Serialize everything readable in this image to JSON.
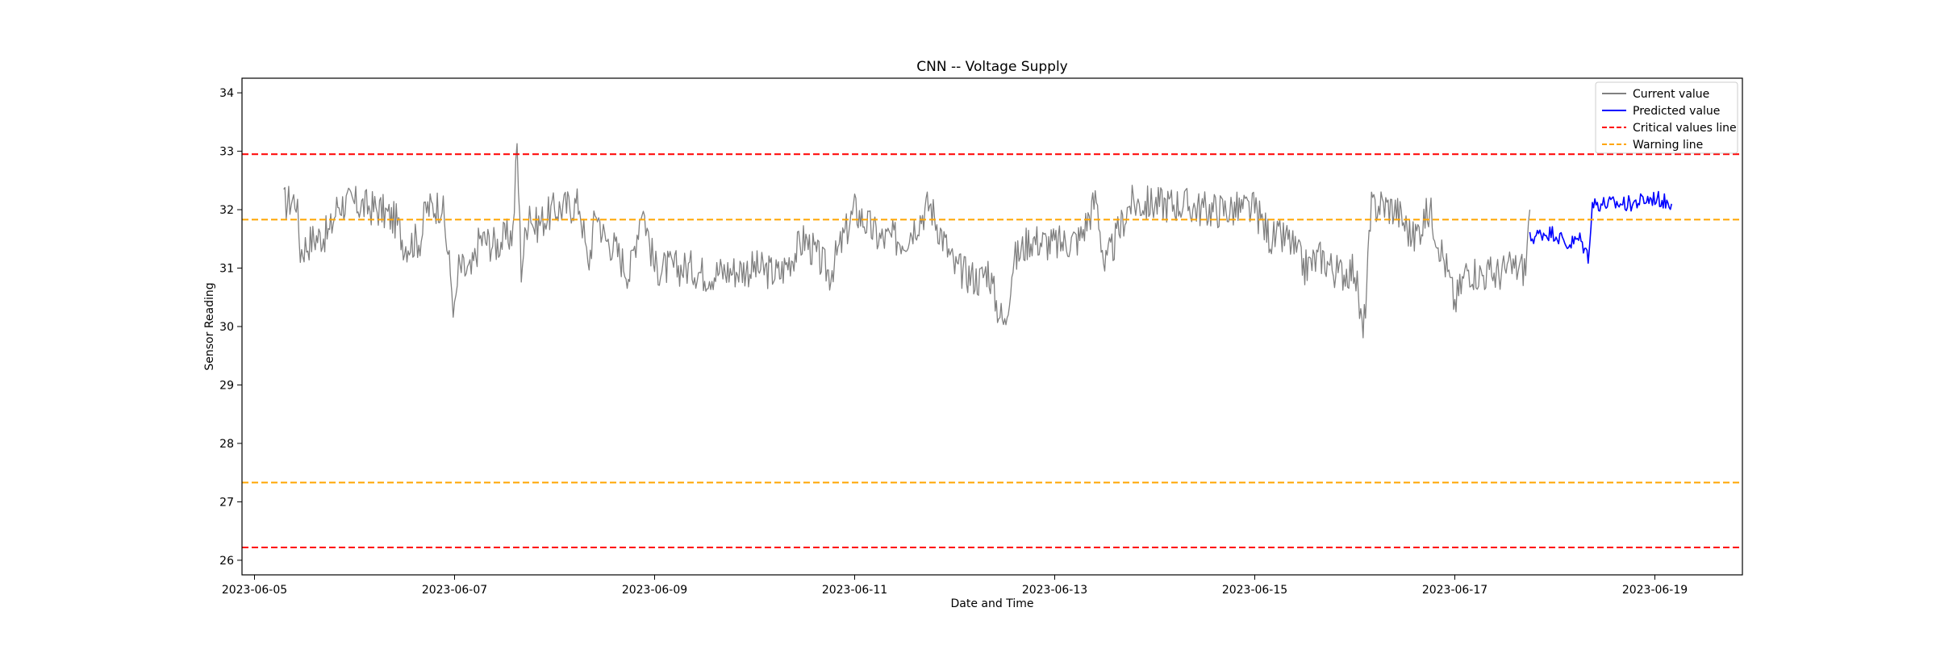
{
  "chart_data": {
    "type": "line",
    "title": "CNN -- Voltage Supply",
    "xlabel": "Date and Time",
    "ylabel": "Sensor Reading",
    "x_range": [
      "2023-06-04T21:00",
      "2023-06-19T21:00"
    ],
    "ylim": [
      25.75,
      34.25
    ],
    "x_ticks": [
      "2023-06-05",
      "2023-06-07",
      "2023-06-09",
      "2023-06-11",
      "2023-06-13",
      "2023-06-15",
      "2023-06-17",
      "2023-06-19"
    ],
    "y_ticks": [
      "26",
      "27",
      "28",
      "29",
      "30",
      "31",
      "32",
      "33",
      "34"
    ],
    "grid": false,
    "legend_position": "top-right",
    "series": [
      {
        "name": "Current value",
        "color": "#808080",
        "style": "solid",
        "x": [
          "2023-06-05T07:00",
          "2023-06-05T10:00",
          "2023-06-05T11:00",
          "2023-06-05T14:00",
          "2023-06-05T18:00",
          "2023-06-05T20:00",
          "2023-06-06T00:00",
          "2023-06-06T06:00",
          "2023-06-06T10:00",
          "2023-06-06T12:00",
          "2023-06-06T16:00",
          "2023-06-06T17:00",
          "2023-06-06T21:00",
          "2023-06-06T23:00",
          "2023-06-07T00:00",
          "2023-06-07T01:00",
          "2023-06-07T04:00",
          "2023-06-07T06:00",
          "2023-06-07T10:00",
          "2023-06-07T14:00",
          "2023-06-07T15:00",
          "2023-06-07T16:00",
          "2023-06-07T18:00",
          "2023-06-07T19:00",
          "2023-06-08T00:00",
          "2023-06-08T06:00",
          "2023-06-08T07:00",
          "2023-06-08T08:00",
          "2023-06-08T10:00",
          "2023-06-08T12:00",
          "2023-06-08T14:00",
          "2023-06-08T18:00",
          "2023-06-08T21:00",
          "2023-06-09T00:00",
          "2023-06-09T06:00",
          "2023-06-09T09:00",
          "2023-06-09T12:00",
          "2023-06-10T00:00",
          "2023-06-10T06:00",
          "2023-06-10T12:00",
          "2023-06-10T18:00",
          "2023-06-11T00:00",
          "2023-06-11T06:00",
          "2023-06-11T12:00",
          "2023-06-11T18:00",
          "2023-06-12T00:00",
          "2023-06-12T06:00",
          "2023-06-12T08:00",
          "2023-06-12T10:00",
          "2023-06-12T12:00",
          "2023-06-12T14:00",
          "2023-06-12T18:00",
          "2023-06-13T00:00",
          "2023-06-13T06:00",
          "2023-06-13T10:00",
          "2023-06-13T12:00",
          "2023-06-13T18:00",
          "2023-06-14T00:00",
          "2023-06-14T06:00",
          "2023-06-14T12:00",
          "2023-06-14T18:00",
          "2023-06-15T00:00",
          "2023-06-15T04:00",
          "2023-06-15T08:00",
          "2023-06-15T12:00",
          "2023-06-15T16:00",
          "2023-06-15T20:00",
          "2023-06-16T00:00",
          "2023-06-16T02:00",
          "2023-06-16T04:00",
          "2023-06-16T06:00",
          "2023-06-16T10:00",
          "2023-06-16T14:00",
          "2023-06-16T18:00",
          "2023-06-16T22:00",
          "2023-06-17T00:00",
          "2023-06-17T03:00",
          "2023-06-17T06:00",
          "2023-06-17T10:00",
          "2023-06-17T14:00",
          "2023-06-17T17:00",
          "2023-06-17T18:00"
        ],
        "values": [
          32.1,
          32.2,
          31.3,
          31.5,
          31.6,
          32.1,
          32.1,
          32.0,
          31.8,
          31.4,
          31.5,
          32.0,
          32.1,
          30.9,
          30.2,
          31.0,
          30.9,
          31.5,
          31.4,
          31.6,
          33.1,
          31.0,
          32.1,
          31.7,
          32.0,
          32.1,
          31.6,
          31.0,
          32.0,
          31.5,
          31.4,
          30.9,
          32.1,
          31.0,
          31.0,
          31.0,
          30.9,
          31.0,
          30.9,
          31.5,
          30.9,
          32.0,
          31.5,
          31.5,
          32.1,
          31.0,
          30.8,
          31.0,
          30.4,
          30.0,
          31.1,
          31.5,
          31.4,
          31.5,
          32.2,
          31.0,
          32.1,
          32.1,
          32.1,
          32.0,
          32.0,
          32.0,
          31.5,
          31.5,
          31.0,
          31.2,
          30.9,
          31.0,
          29.8,
          32.0,
          32.1,
          32.0,
          31.5,
          32.0,
          31.0,
          30.4,
          31.0,
          30.9,
          30.9,
          31.0,
          31.0,
          32.0
        ]
      },
      {
        "name": "Predicted value",
        "color": "#0000ff",
        "style": "solid",
        "x": [
          "2023-06-17T18:00",
          "2023-06-17T21:00",
          "2023-06-18T00:00",
          "2023-06-18T03:00",
          "2023-06-18T06:00",
          "2023-06-18T08:00",
          "2023-06-18T09:00",
          "2023-06-18T12:00",
          "2023-06-18T18:00",
          "2023-06-19T00:00",
          "2023-06-19T04:00"
        ],
        "values": [
          31.5,
          31.6,
          31.6,
          31.4,
          31.5,
          31.2,
          32.1,
          32.1,
          32.1,
          32.2,
          32.1
        ]
      },
      {
        "name": "Critical values line",
        "color": "#ff0000",
        "style": "dashed",
        "hlines": [
          32.95,
          26.22
        ]
      },
      {
        "name": "Warning line",
        "color": "#ffa500",
        "style": "dashed",
        "hlines": [
          31.83,
          27.33
        ]
      }
    ]
  }
}
